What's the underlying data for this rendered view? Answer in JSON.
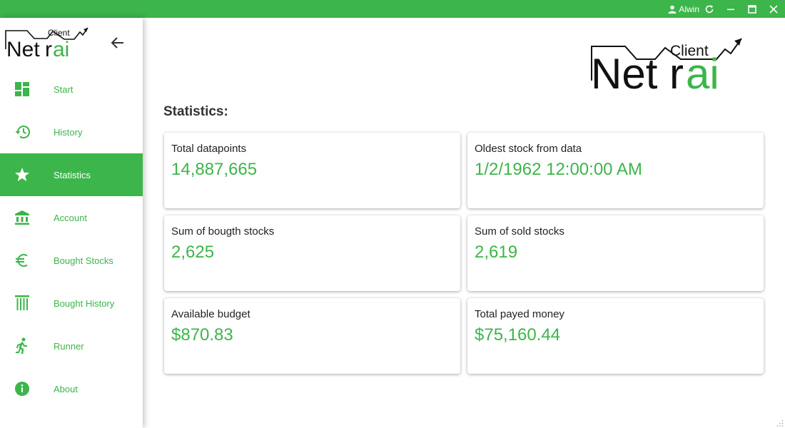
{
  "titlebar": {
    "user": "Alwin",
    "icons": [
      "user-icon",
      "refresh-icon",
      "minimize-icon",
      "maximize-icon",
      "close-icon"
    ]
  },
  "logo": {
    "top": "Client",
    "main_start": "Net",
    "main_end": "ai",
    "mark": "r"
  },
  "sidebar": {
    "back_icon": "arrow-left-icon",
    "items": [
      {
        "label": "Start",
        "icon": "dashboard-icon"
      },
      {
        "label": "History",
        "icon": "history-icon"
      },
      {
        "label": "Statistics",
        "icon": "star-icon",
        "active": true
      },
      {
        "label": "Account",
        "icon": "bank-icon"
      },
      {
        "label": "Bought Stocks",
        "icon": "euro-icon"
      },
      {
        "label": "Bought History",
        "icon": "columns-icon"
      },
      {
        "label": "Runner",
        "icon": "runner-icon"
      },
      {
        "label": "About",
        "icon": "info-icon"
      }
    ]
  },
  "main": {
    "title": "Statistics:",
    "cards": [
      {
        "label": "Total datapoints",
        "value": "14,887,665"
      },
      {
        "label": "Oldest stock from data",
        "value": "1/2/1962 12:00:00 AM"
      },
      {
        "label": "Sum of bougth stocks",
        "value": "2,625"
      },
      {
        "label": "Sum of sold stocks",
        "value": "2,619"
      },
      {
        "label": "Available budget",
        "value": "$870.83"
      },
      {
        "label": "Total payed money",
        "value": "$75,160.44"
      }
    ]
  },
  "colors": {
    "accent": "#3cb54a",
    "text": "#222222",
    "logo": "#111111"
  }
}
